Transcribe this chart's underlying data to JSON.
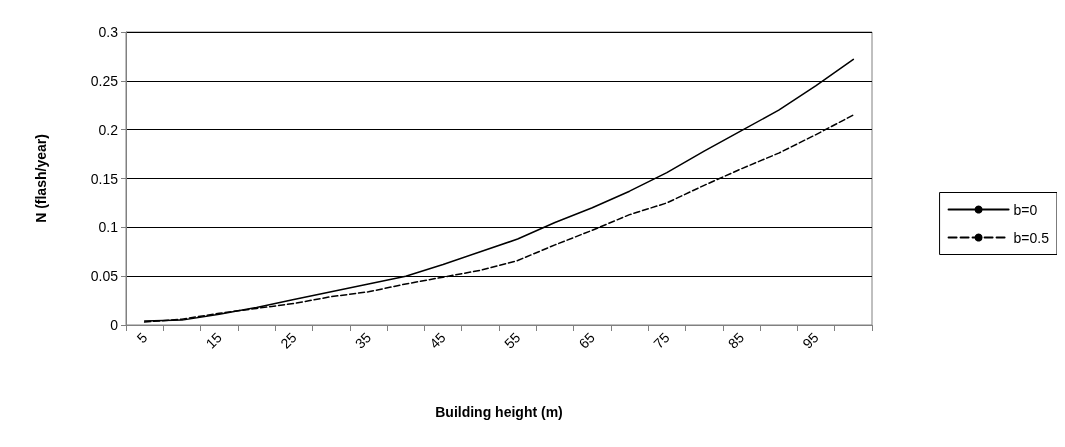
{
  "chart_data": {
    "type": "line",
    "xlabel": "Building height (m)",
    "ylabel": "N (flash/year)",
    "categories": [
      "5",
      null,
      "15",
      null,
      "25",
      null,
      "35",
      null,
      "45",
      null,
      "55",
      null,
      "65",
      null,
      "75",
      null,
      "85",
      null,
      "95",
      null
    ],
    "series": [
      {
        "name": "b=0",
        "color": "#000000",
        "line_style": "solid",
        "values": [
          0.004,
          0.005,
          0.011,
          0.018,
          0.026,
          0.034,
          0.042,
          0.05,
          0.062,
          0.075,
          0.088,
          0.105,
          0.12,
          0.137,
          0.156,
          0.178,
          0.199,
          0.22,
          0.245,
          0.272
        ]
      },
      {
        "name": "b=0.5",
        "color": "#000000",
        "line_style": "dashed",
        "values": [
          0.003,
          0.006,
          0.012,
          0.017,
          0.022,
          0.029,
          0.034,
          0.042,
          0.049,
          0.056,
          0.066,
          0.082,
          0.097,
          0.113,
          0.125,
          0.143,
          0.16,
          0.176,
          0.195,
          0.215
        ]
      }
    ],
    "ylim": [
      0,
      0.3
    ],
    "yticks": [
      0,
      0.05,
      0.1,
      0.15,
      0.2,
      0.25,
      0.3
    ],
    "grid": "y",
    "legend": "right",
    "marker": "none"
  }
}
